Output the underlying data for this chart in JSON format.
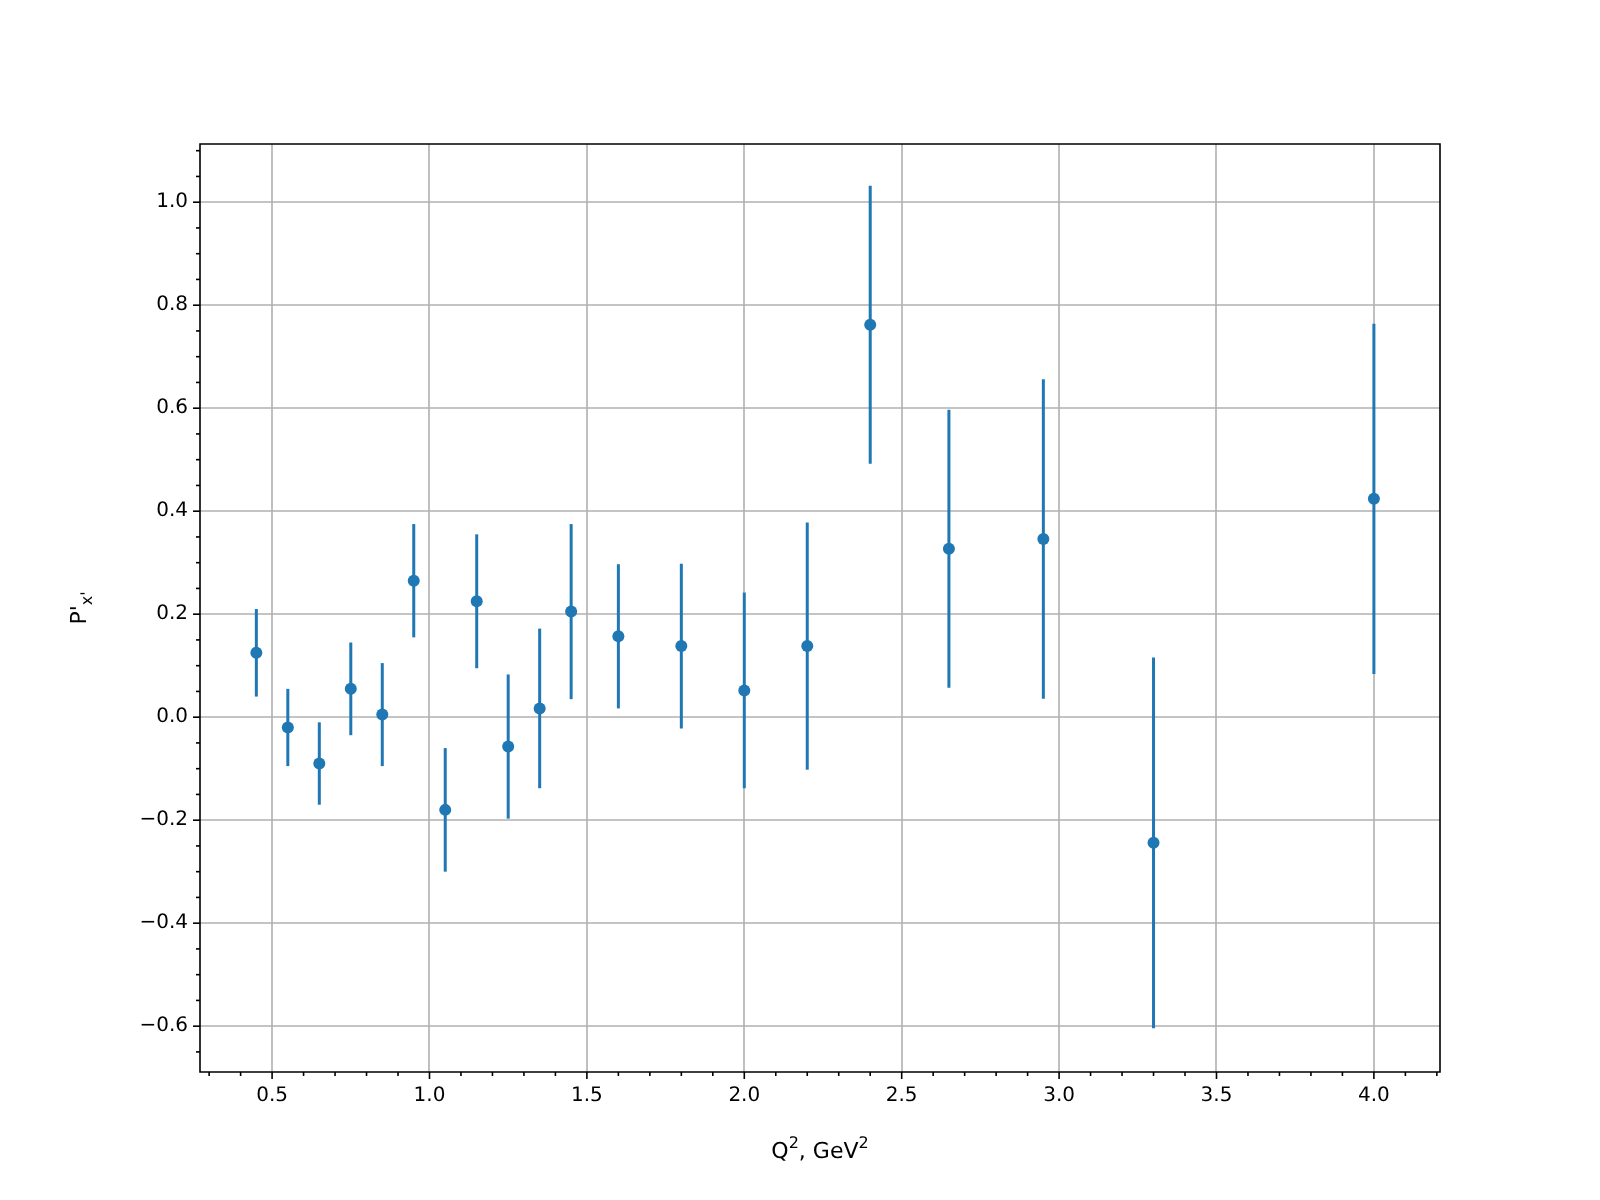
{
  "chart_data": {
    "type": "scatter",
    "xlabel": "Q$^{2}$, GeV$^{2}$",
    "ylabel": "P'$_{x'}$",
    "x": [
      0.45,
      0.55,
      0.65,
      0.75,
      0.85,
      0.95,
      1.05,
      1.15,
      1.25,
      1.35,
      1.45,
      1.6,
      1.8,
      2.0,
      2.2,
      2.4,
      2.65,
      2.95,
      3.3,
      4.0
    ],
    "series": [
      {
        "color": "#1f77b4",
        "values": [
          0.125,
          -0.02,
          -0.09,
          0.055,
          0.005,
          0.265,
          -0.18,
          0.225,
          -0.057,
          0.017,
          0.205,
          0.157,
          0.138,
          0.052,
          0.138,
          0.762,
          0.327,
          0.346,
          -0.244,
          0.424
        ],
        "errors": [
          0.085,
          0.075,
          0.08,
          0.09,
          0.1,
          0.11,
          0.12,
          0.13,
          0.14,
          0.155,
          0.17,
          0.14,
          0.16,
          0.19,
          0.24,
          0.27,
          0.27,
          0.31,
          0.36,
          0.34
        ]
      }
    ],
    "xlim": [
      0.271,
      4.21
    ],
    "ylim": [
      -0.689,
      1.113
    ],
    "xticks": [
      {
        "value": 0.3,
        "label": null
      },
      {
        "value": 0.4,
        "label": null
      },
      {
        "value": 0.5,
        "label": "0.5"
      },
      {
        "value": 0.6,
        "label": null
      },
      {
        "value": 0.7,
        "label": null
      },
      {
        "value": 0.8,
        "label": null
      },
      {
        "value": 0.9,
        "label": null
      },
      {
        "value": 1,
        "label": "1.0"
      },
      {
        "value": 1.1,
        "label": null
      },
      {
        "value": 1.2,
        "label": null
      },
      {
        "value": 1.3,
        "label": null
      },
      {
        "value": 1.4,
        "label": null
      },
      {
        "value": 1.5,
        "label": "1.5"
      },
      {
        "value": 1.6,
        "label": null
      },
      {
        "value": 1.7,
        "label": null
      },
      {
        "value": 1.8,
        "label": null
      },
      {
        "value": 1.9,
        "label": null
      },
      {
        "value": 2,
        "label": "2.0"
      },
      {
        "value": 2.1,
        "label": null
      },
      {
        "value": 2.2,
        "label": null
      },
      {
        "value": 2.3,
        "label": null
      },
      {
        "value": 2.4,
        "label": null
      },
      {
        "value": 2.5,
        "label": "2.5"
      },
      {
        "value": 2.6,
        "label": null
      },
      {
        "value": 2.7,
        "label": null
      },
      {
        "value": 2.8,
        "label": null
      },
      {
        "value": 2.9,
        "label": null
      },
      {
        "value": 3,
        "label": "3.0"
      },
      {
        "value": 3.1,
        "label": null
      },
      {
        "value": 3.2,
        "label": null
      },
      {
        "value": 3.3,
        "label": null
      },
      {
        "value": 3.4,
        "label": null
      },
      {
        "value": 3.5,
        "label": "3.5"
      },
      {
        "value": 3.6,
        "label": null
      },
      {
        "value": 3.7,
        "label": null
      },
      {
        "value": 3.8,
        "label": null
      },
      {
        "value": 3.9,
        "label": null
      },
      {
        "value": 4,
        "label": "4.0"
      },
      {
        "value": 4.1,
        "label": null
      },
      {
        "value": 4.2,
        "label": null
      }
    ],
    "yticks": [
      {
        "value": -0.65,
        "label": null
      },
      {
        "value": -0.6,
        "label": "−0.6"
      },
      {
        "value": -0.55,
        "label": null
      },
      {
        "value": -0.5,
        "label": null
      },
      {
        "value": -0.45,
        "label": null
      },
      {
        "value": -0.4,
        "label": "−0.4"
      },
      {
        "value": -0.35,
        "label": null
      },
      {
        "value": -0.3,
        "label": null
      },
      {
        "value": -0.25,
        "label": null
      },
      {
        "value": -0.2,
        "label": "−0.2"
      },
      {
        "value": -0.15,
        "label": null
      },
      {
        "value": -0.1,
        "label": null
      },
      {
        "value": -0.05,
        "label": null
      },
      {
        "value": 0,
        "label": "0.0"
      },
      {
        "value": 0.05,
        "label": null
      },
      {
        "value": 0.1,
        "label": null
      },
      {
        "value": 0.15,
        "label": null
      },
      {
        "value": 0.2,
        "label": "0.2"
      },
      {
        "value": 0.25,
        "label": null
      },
      {
        "value": 0.3,
        "label": null
      },
      {
        "value": 0.35,
        "label": null
      },
      {
        "value": 0.4,
        "label": "0.4"
      },
      {
        "value": 0.45,
        "label": null
      },
      {
        "value": 0.5,
        "label": null
      },
      {
        "value": 0.55,
        "label": null
      },
      {
        "value": 0.6,
        "label": "0.6"
      },
      {
        "value": 0.65,
        "label": null
      },
      {
        "value": 0.7,
        "label": null
      },
      {
        "value": 0.75,
        "label": null
      },
      {
        "value": 0.8,
        "label": "0.8"
      },
      {
        "value": 0.85,
        "label": null
      },
      {
        "value": 0.9,
        "label": null
      },
      {
        "value": 0.95,
        "label": null
      },
      {
        "value": 1,
        "label": "1.0"
      },
      {
        "value": 1.05,
        "label": null
      },
      {
        "value": 1.1,
        "label": null
      }
    ],
    "grid": true,
    "marker": "circle"
  }
}
